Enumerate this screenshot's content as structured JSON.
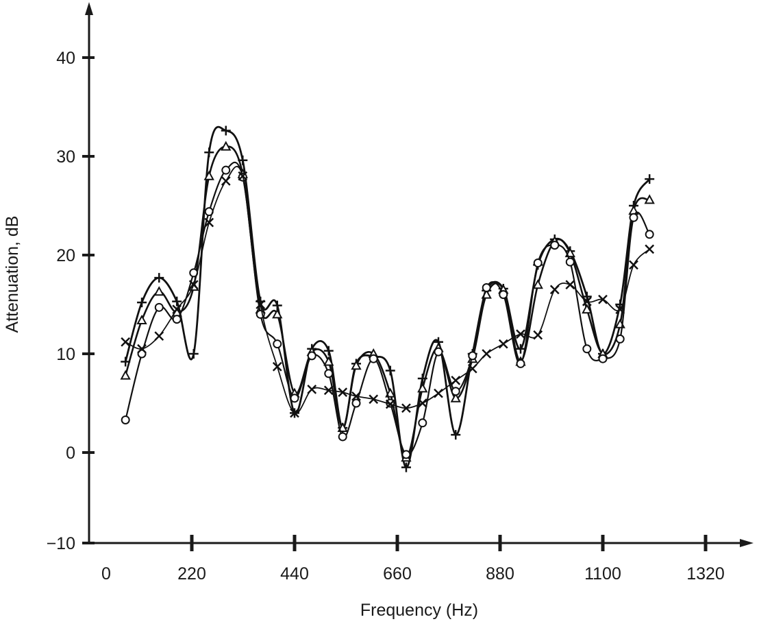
{
  "chart_data": {
    "type": "line",
    "title": "",
    "xlabel": "Frequency (Hz)",
    "ylabel": "Attenuation, dB",
    "xlim": [
      0,
      1400
    ],
    "ylim": [
      -10,
      45
    ],
    "x_ticks": [
      0,
      220,
      440,
      660,
      880,
      1100,
      1320
    ],
    "y_ticks": [
      -10,
      0,
      10,
      20,
      30,
      40
    ],
    "grid": false,
    "legend": "none",
    "series": [
      {
        "name": "plus-marker series",
        "marker": "plus",
        "x": [
          78,
          113,
          150,
          188,
          224,
          257,
          293,
          329,
          367,
          403,
          440,
          477,
          513,
          543,
          572,
          609,
          645,
          679,
          714,
          748,
          785,
          821,
          851,
          887,
          924,
          961,
          997,
          1030,
          1066,
          1100,
          1137,
          1166,
          1200
        ],
        "y": [
          9.2,
          15.2,
          17.7,
          15.3,
          10.0,
          30.4,
          32.6,
          29.6,
          15.3,
          14.9,
          4.0,
          10.5,
          10.3,
          2.5,
          9.0,
          9.7,
          8.3,
          -1.5,
          7.5,
          11.2,
          1.8,
          10.0,
          16.4,
          16.6,
          10.5,
          19.0,
          21.6,
          20.4,
          15.8,
          10.0,
          15.0,
          25.0,
          27.7
        ]
      },
      {
        "name": "triangle-marker series",
        "marker": "triangle",
        "x": [
          78,
          113,
          150,
          188,
          224,
          257,
          293,
          329,
          367,
          403,
          440,
          477,
          513,
          543,
          572,
          609,
          645,
          679,
          714,
          748,
          785,
          821,
          851,
          887,
          924,
          961,
          997,
          1030,
          1066,
          1100,
          1137,
          1166,
          1200
        ],
        "y": [
          7.8,
          13.4,
          16.3,
          14.2,
          16.8,
          28.0,
          31.0,
          28.2,
          14.5,
          14.0,
          6.0,
          10.2,
          9.2,
          2.5,
          8.8,
          10.0,
          6.0,
          -0.5,
          6.5,
          10.6,
          5.5,
          9.5,
          16.0,
          16.5,
          9.2,
          17.0,
          21.4,
          20.2,
          14.5,
          10.0,
          13.0,
          24.5,
          25.6
        ]
      },
      {
        "name": "circle-marker series",
        "marker": "circle",
        "x": [
          78,
          113,
          150,
          188,
          224,
          257,
          293,
          329,
          367,
          403,
          440,
          477,
          513,
          543,
          572,
          609,
          645,
          679,
          714,
          748,
          785,
          821,
          851,
          887,
          924,
          961,
          997,
          1030,
          1066,
          1100,
          1137,
          1166,
          1200
        ],
        "y": [
          3.3,
          10.0,
          14.7,
          13.5,
          18.2,
          24.4,
          28.6,
          27.9,
          14.0,
          11.0,
          5.5,
          9.8,
          8.0,
          1.6,
          5.0,
          9.5,
          5.0,
          -0.2,
          3.0,
          10.2,
          6.2,
          9.8,
          16.7,
          16.0,
          9.0,
          19.2,
          21.0,
          19.3,
          10.5,
          9.5,
          11.5,
          23.8,
          22.1
        ]
      },
      {
        "name": "cross-marker series",
        "marker": "cross",
        "x": [
          78,
          113,
          150,
          188,
          224,
          257,
          293,
          329,
          367,
          403,
          440,
          477,
          513,
          543,
          572,
          609,
          645,
          679,
          714,
          748,
          785,
          821,
          851,
          887,
          924,
          961,
          997,
          1030,
          1066,
          1100,
          1137,
          1166,
          1200
        ],
        "y": [
          11.2,
          10.5,
          11.8,
          14.5,
          17.0,
          23.3,
          27.5,
          28.0,
          15.0,
          8.7,
          4.0,
          6.4,
          6.3,
          6.1,
          5.7,
          5.4,
          4.9,
          4.5,
          5.0,
          6.0,
          7.3,
          8.5,
          10.0,
          11.0,
          12.0,
          11.9,
          16.5,
          17.0,
          15.3,
          15.5,
          14.5,
          19.0,
          20.6
        ]
      }
    ]
  }
}
